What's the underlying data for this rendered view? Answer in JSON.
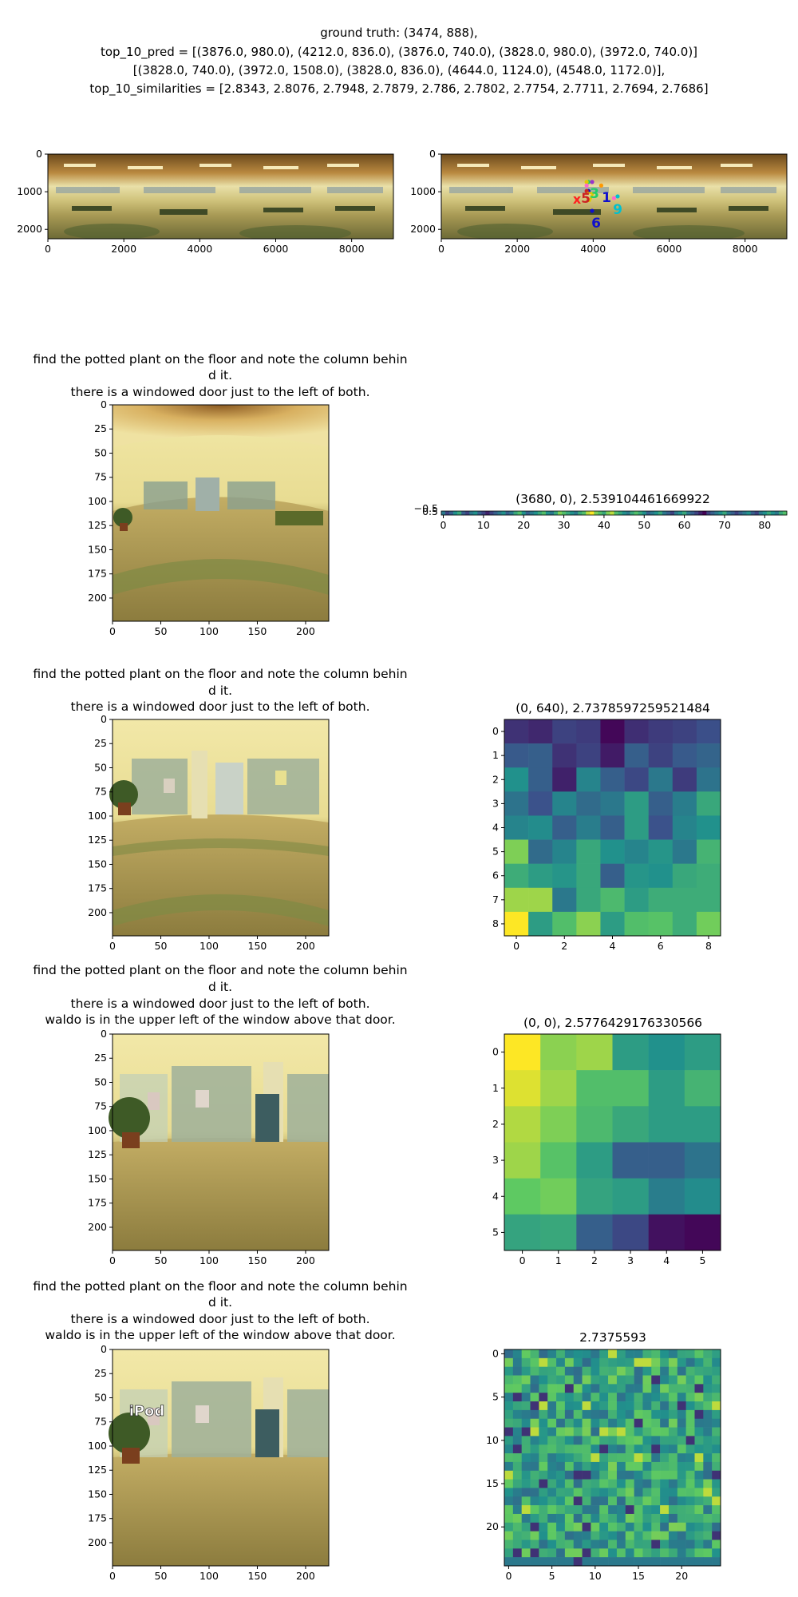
{
  "header": {
    "lines": [
      "ground truth: (3474, 888),",
      "top_10_pred = [(3876.0, 980.0), (4212.0, 836.0), (3876.0, 740.0), (3828.0, 980.0), (3972.0, 740.0)]",
      "[(3828.0, 740.0), (3972.0, 1508.0), (3828.0, 836.0), (4644.0, 1124.0), (4548.0, 1172.0)],",
      "top_10_similarities = [2.8343, 2.8076, 2.7948, 2.7879, 2.786, 2.7802, 2.7754, 2.7711, 2.7694, 2.7686]"
    ]
  },
  "panorama_axes": {
    "x_ticks": [
      "0",
      "2000",
      "4000",
      "6000",
      "8000"
    ],
    "y_ticks": [
      "0",
      "1000",
      "2000"
    ]
  },
  "pred_markers": {
    "truth_mark": "x",
    "labels": [
      "1",
      "7",
      "3",
      "6",
      "9",
      "5"
    ]
  },
  "views": [
    {
      "caption": [
        "find the potted plant on the floor and note the column behin",
        "d it.",
        "there is a windowed door just to the left of both."
      ],
      "photo_label": ""
    },
    {
      "caption": [
        "find the potted plant on the floor and note the column behin",
        "d it.",
        "there is a windowed door just to the left of both."
      ],
      "photo_label": ""
    },
    {
      "caption": [
        "find the potted plant on the floor and note the column behin",
        "d it.",
        "there is a windowed door just to the left of both.",
        "waldo is in the upper left of the window above that door."
      ],
      "photo_label": ""
    },
    {
      "caption": [
        "find the potted plant on the floor and note the column behin",
        "d it.",
        "there is a windowed door just to the left of both.",
        "waldo is in the upper left of the window above that door."
      ],
      "photo_label": "iPod"
    }
  ],
  "view_axes": {
    "x_ticks": [
      "0",
      "50",
      "100",
      "150",
      "200"
    ],
    "y_ticks": [
      "0",
      "25",
      "50",
      "75",
      "100",
      "125",
      "150",
      "175",
      "200"
    ]
  },
  "chart_data": [
    {
      "type": "scatter",
      "title": "top_10 predictions on panorama",
      "ground_truth": [
        3474,
        888
      ],
      "x": [
        3876.0,
        4212.0,
        3876.0,
        3828.0,
        3972.0,
        3828.0,
        3972.0,
        3828.0,
        4644.0,
        4548.0
      ],
      "y": [
        980.0,
        836.0,
        740.0,
        980.0,
        740.0,
        740.0,
        1508.0,
        836.0,
        1124.0,
        1172.0
      ],
      "similarities": [
        2.8343,
        2.8076,
        2.7948,
        2.7879,
        2.786,
        2.7802,
        2.7754,
        2.7711,
        2.7694,
        2.7686
      ],
      "xlim": [
        0,
        9100
      ],
      "ylim": [
        2250,
        0
      ]
    },
    {
      "type": "heatmap",
      "title": "(3680, 0), 2.539104461669922",
      "x_ticks": [
        "0",
        "10",
        "20",
        "30",
        "40",
        "50",
        "60",
        "70",
        "80"
      ],
      "y_ticks": [
        "−0.5",
        "0.5"
      ],
      "cols": 86,
      "values": [
        [
          0.4,
          0.2,
          0.3,
          0.5,
          0.6,
          0.3,
          0.2,
          0.4,
          0.5,
          0.3,
          0.2,
          0.1,
          0.2,
          0.3,
          0.4,
          0.5,
          0.3,
          0.4,
          0.6,
          0.7,
          0.5,
          0.3,
          0.4,
          0.5,
          0.6,
          0.7,
          0.5,
          0.4,
          0.6,
          0.8,
          0.7,
          0.6,
          0.5,
          0.4,
          0.6,
          0.7,
          0.9,
          1.0,
          0.8,
          0.7,
          0.6,
          0.8,
          0.9,
          0.7,
          0.6,
          0.5,
          0.4,
          0.6,
          0.7,
          0.6,
          0.5,
          0.3,
          0.4,
          0.5,
          0.6,
          0.4,
          0.3,
          0.2,
          0.4,
          0.5,
          0.6,
          0.4,
          0.3,
          0.2,
          0.1,
          0.0,
          0.2,
          0.3,
          0.4,
          0.5,
          0.6,
          0.4,
          0.3,
          0.2,
          0.3,
          0.4,
          0.5,
          0.3,
          0.2,
          0.4,
          0.5,
          0.6,
          0.5,
          0.4,
          0.6,
          0.7
        ]
      ]
    },
    {
      "type": "heatmap",
      "title": "(0, 640), 2.7378597259521484",
      "x_ticks": [
        "0",
        "2",
        "4",
        "6",
        "8"
      ],
      "y_ticks": [
        "0",
        "1",
        "2",
        "3",
        "4",
        "5",
        "6",
        "7",
        "8"
      ],
      "cols": 9,
      "values": [
        [
          0.15,
          0.12,
          0.2,
          0.18,
          0.02,
          0.14,
          0.18,
          0.2,
          0.24
        ],
        [
          0.28,
          0.3,
          0.15,
          0.2,
          0.08,
          0.3,
          0.2,
          0.28,
          0.32
        ],
        [
          0.5,
          0.3,
          0.1,
          0.45,
          0.3,
          0.22,
          0.4,
          0.18,
          0.38
        ],
        [
          0.38,
          0.25,
          0.45,
          0.35,
          0.4,
          0.55,
          0.3,
          0.42,
          0.6
        ],
        [
          0.45,
          0.48,
          0.3,
          0.42,
          0.3,
          0.55,
          0.25,
          0.45,
          0.5
        ],
        [
          0.8,
          0.35,
          0.45,
          0.6,
          0.5,
          0.45,
          0.52,
          0.4,
          0.65
        ],
        [
          0.62,
          0.55,
          0.52,
          0.6,
          0.3,
          0.52,
          0.5,
          0.6,
          0.62
        ],
        [
          0.85,
          0.85,
          0.4,
          0.6,
          0.68,
          0.55,
          0.62,
          0.62,
          0.62
        ],
        [
          1.0,
          0.55,
          0.7,
          0.82,
          0.55,
          0.7,
          0.72,
          0.62,
          0.78
        ]
      ]
    },
    {
      "type": "heatmap",
      "title": "(0, 0), 2.5776429176330566",
      "x_ticks": [
        "0",
        "1",
        "2",
        "3",
        "4",
        "5"
      ],
      "y_ticks": [
        "0",
        "1",
        "2",
        "3",
        "4",
        "5"
      ],
      "cols": 6,
      "values": [
        [
          1.0,
          0.82,
          0.85,
          0.55,
          0.5,
          0.55
        ],
        [
          0.95,
          0.85,
          0.7,
          0.7,
          0.55,
          0.65
        ],
        [
          0.88,
          0.8,
          0.68,
          0.6,
          0.55,
          0.55
        ],
        [
          0.85,
          0.72,
          0.55,
          0.3,
          0.3,
          0.38
        ],
        [
          0.75,
          0.78,
          0.58,
          0.55,
          0.42,
          0.48
        ],
        [
          0.58,
          0.6,
          0.3,
          0.22,
          0.05,
          0.02
        ]
      ]
    },
    {
      "type": "heatmap",
      "title": "2.7375593",
      "x_ticks": [
        "0",
        "5",
        "10",
        "15",
        "20"
      ],
      "y_ticks": [
        "0",
        "5",
        "10",
        "15",
        "20"
      ],
      "cols": 25,
      "generated": "noise",
      "value_range": [
        0,
        1
      ]
    }
  ]
}
